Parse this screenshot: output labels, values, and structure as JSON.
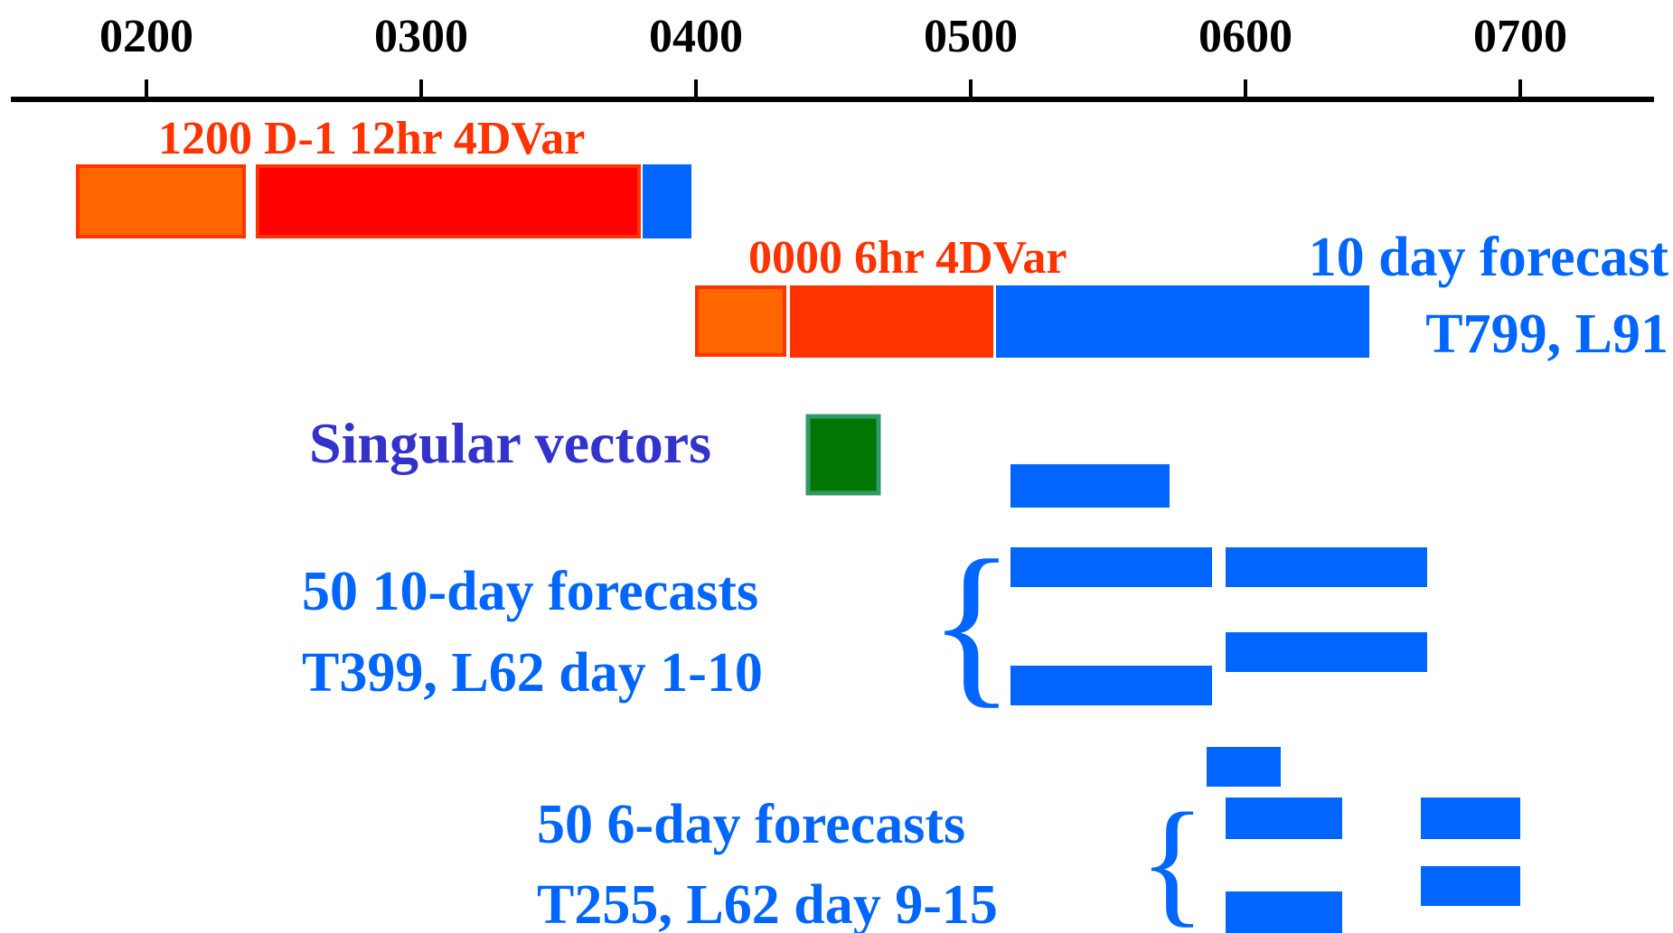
{
  "colors": {
    "axis": "#000000",
    "orange": "#ff6600",
    "red": "#ff0000",
    "redorange": "#ff3300",
    "blue": "#0066ff",
    "green": "#007700",
    "green_border": "#339966",
    "sv_text": "#3333cc"
  },
  "ticks": [
    "0200",
    "0300",
    "0400",
    "0500",
    "0600",
    "0700"
  ],
  "labels": {
    "d1": "1200 D-1 12hr 4DVar",
    "d0": "0000 6hr 4DVar",
    "fc_line1": "10 day forecast",
    "fc_line2": "T799, L91",
    "sv": "Singular vectors",
    "ens10_line1": "50 10-day forecasts",
    "ens10_line2": "T399, L62  day 1-10",
    "ens6_line1": "50 6-day forecasts",
    "ens6_line2": "T255, L62  day 9-15",
    "brace": "{"
  }
}
